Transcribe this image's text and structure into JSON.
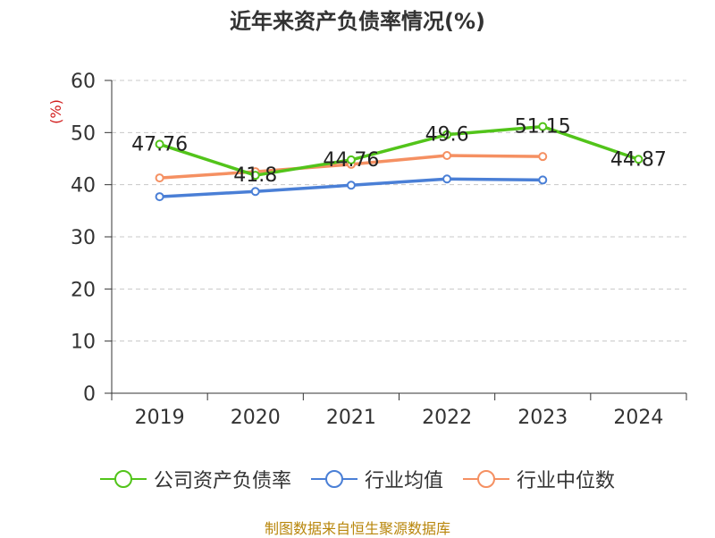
{
  "title": "近年来资产负债率情况(%)",
  "source": "制图数据来自恒生聚源数据库",
  "colors": {
    "company": "#52c41a",
    "industry_avg": "#4a7fd6",
    "industry_median": "#f59062",
    "axis": "#333333",
    "grid": "#c8c8c8",
    "unit": "#d11a1a"
  },
  "chart_data": {
    "type": "line",
    "title": "近年来资产负债率情况(%)",
    "ylabel": "(%)",
    "xlabel": "",
    "categories": [
      "2019",
      "2020",
      "2021",
      "2022",
      "2023",
      "2024"
    ],
    "ylim": [
      0,
      60
    ],
    "yticks": [
      0,
      10,
      20,
      30,
      40,
      50,
      60
    ],
    "grid": true,
    "legend_position": "bottom",
    "series": [
      {
        "name": "公司资产负债率",
        "color": "#52c41a",
        "values": [
          47.76,
          41.8,
          44.76,
          49.6,
          51.15,
          44.87
        ],
        "labels": true
      },
      {
        "name": "行业均值",
        "color": "#4a7fd6",
        "values": [
          37.7,
          38.7,
          39.9,
          41.1,
          40.9,
          null
        ],
        "labels": false
      },
      {
        "name": "行业中位数",
        "color": "#f59062",
        "values": [
          41.3,
          42.5,
          43.9,
          45.6,
          45.4,
          null
        ],
        "labels": false
      }
    ]
  }
}
